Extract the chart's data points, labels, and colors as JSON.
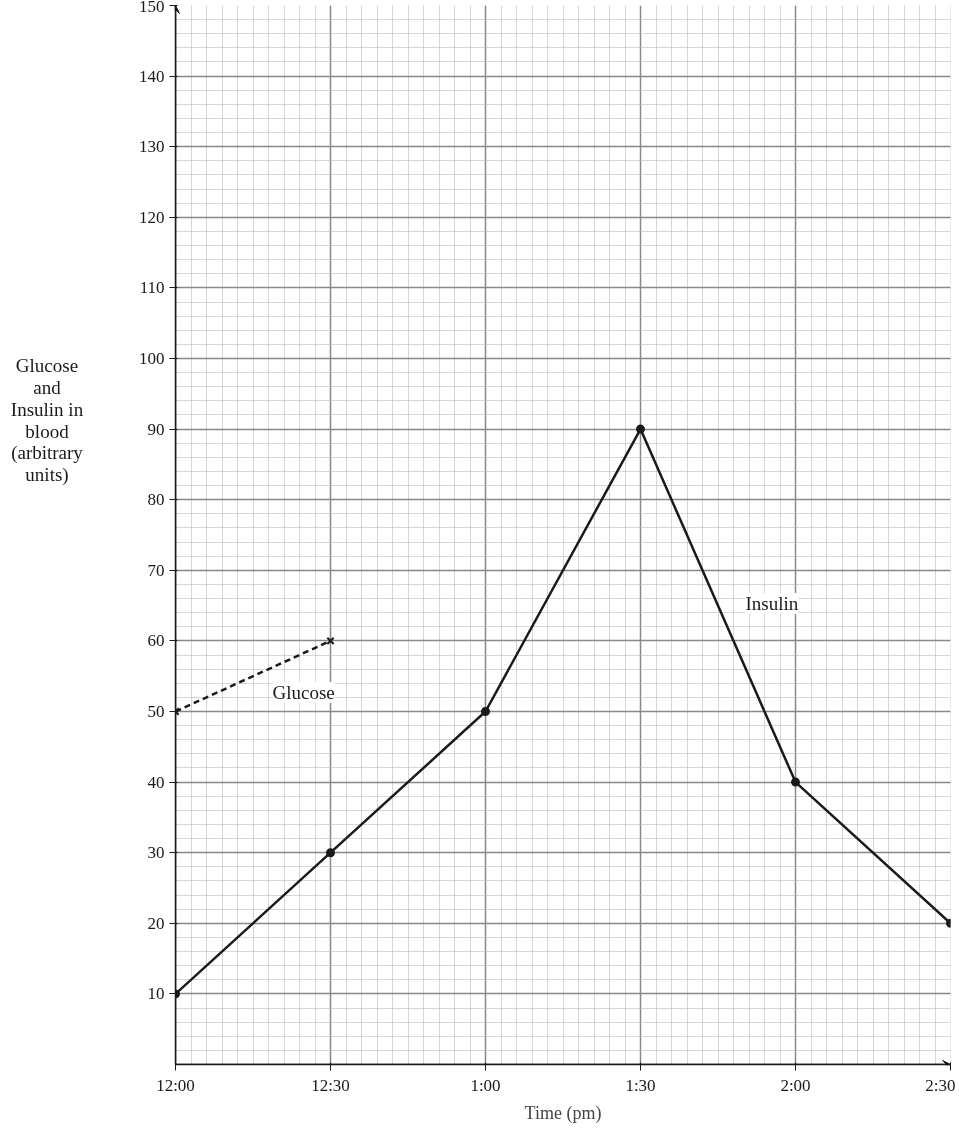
{
  "chart_data": {
    "type": "line",
    "xlabel": "Time (pm)",
    "ylabel": "Glucose and Insulin in blood (arbitrary units)",
    "categories": [
      "12:00",
      "12:30",
      "1:00",
      "1:30",
      "2:00",
      "2:30"
    ],
    "series": [
      {
        "name": "Insulin",
        "color": "#1a1a1a",
        "values": [
          10,
          30,
          50,
          90,
          40,
          20
        ],
        "marker": "circle",
        "line_style": "solid"
      },
      {
        "name": "Glucose",
        "color": "#1a1a1a",
        "values": [
          50,
          60,
          null,
          null,
          null,
          null
        ],
        "marker": "cross",
        "line_style": "dashed"
      }
    ],
    "ylim": [
      0,
      150
    ],
    "yticks": [
      10,
      20,
      30,
      40,
      50,
      60,
      70,
      80,
      90,
      100,
      110,
      120,
      130,
      140,
      150
    ],
    "grid": true,
    "legend": false
  }
}
